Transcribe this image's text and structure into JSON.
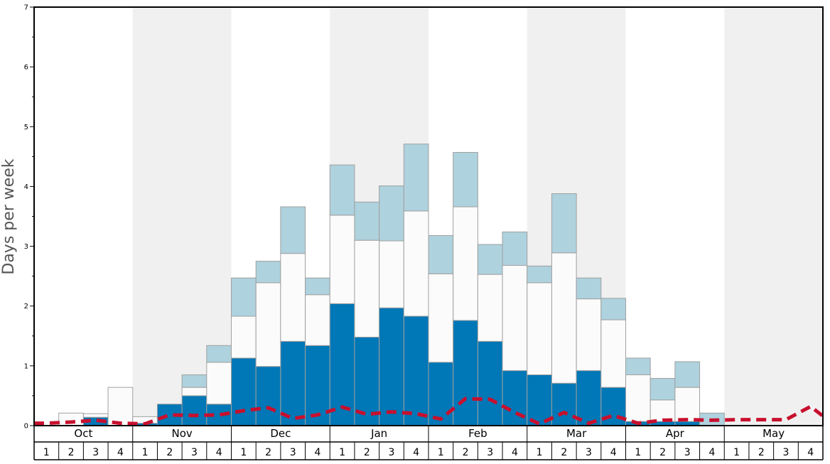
{
  "chart_data": {
    "type": "bar",
    "ylabel": "Days per week",
    "ylim": [
      0,
      7
    ],
    "yticks": [
      "0",
      "1",
      "2",
      "3",
      "4",
      "5",
      "6",
      "7"
    ],
    "months": [
      "Oct",
      "Nov",
      "Dec",
      "Jan",
      "Feb",
      "Mar",
      "Apr",
      "May"
    ],
    "week_labels": [
      "1",
      "2",
      "3",
      "4"
    ],
    "categories": [
      "Oct 1",
      "Oct 2",
      "Oct 3",
      "Oct 4",
      "Nov 1",
      "Nov 2",
      "Nov 3",
      "Nov 4",
      "Dec 1",
      "Dec 2",
      "Dec 3",
      "Dec 4",
      "Jan 1",
      "Jan 2",
      "Jan 3",
      "Jan 4",
      "Feb 1",
      "Feb 2",
      "Feb 3",
      "Feb 4",
      "Mar 1",
      "Mar 2",
      "Mar 3",
      "Mar 4",
      "Apr 1",
      "Apr 2",
      "Apr 3",
      "Apr 4",
      "May 1",
      "May 2",
      "May 3",
      "May 4"
    ],
    "stack_series": [
      {
        "color": "#0077b6",
        "values": [
          0,
          0,
          0.14,
          0,
          0.04,
          0.36,
          0.5,
          0.36,
          1.13,
          0.99,
          1.41,
          1.34,
          2.04,
          1.48,
          1.97,
          1.83,
          1.06,
          1.76,
          1.41,
          0.92,
          0.85,
          0.71,
          0.92,
          0.64,
          0.07,
          0.07,
          0.07,
          0,
          0,
          0,
          0,
          0
        ]
      },
      {
        "color": "#fbfbfb",
        "values": [
          0,
          0.21,
          0.06,
          0.64,
          0.11,
          0,
          0.14,
          0.7,
          0.7,
          1.4,
          1.47,
          0.85,
          1.48,
          1.62,
          1.12,
          1.76,
          1.48,
          1.9,
          1.12,
          1.76,
          1.54,
          2.18,
          1.2,
          1.13,
          0.78,
          0.36,
          0.57,
          0,
          0,
          0,
          0,
          0
        ]
      },
      {
        "color": "#aed2de",
        "values": [
          0,
          0,
          0,
          0,
          0,
          0,
          0.21,
          0.28,
          0.64,
          0.36,
          0.78,
          0.28,
          0.84,
          0.64,
          0.92,
          1.12,
          0.64,
          0.91,
          0.5,
          0.56,
          0.28,
          0.99,
          0.35,
          0.36,
          0.28,
          0.36,
          0.43,
          0.21,
          0,
          0,
          0,
          0
        ]
      }
    ],
    "average_line": {
      "color": "#c8102e",
      "style": "dashed",
      "values": [
        0.04,
        0.06,
        0.09,
        0.04,
        0.03,
        0.18,
        0.17,
        0.18,
        0.25,
        0.3,
        0.12,
        0.18,
        0.31,
        0.19,
        0.23,
        0.2,
        0.11,
        0.45,
        0.44,
        0.22,
        0.03,
        0.22,
        0.04,
        0.17,
        0.04,
        0.09,
        0.1,
        0.09,
        0.1,
        0.1,
        0.1,
        0.32
      ]
    },
    "colors": {
      "band_shade": "#f0f0f1",
      "bar_edge": "#a0a0a0",
      "frame": "#000000"
    }
  }
}
